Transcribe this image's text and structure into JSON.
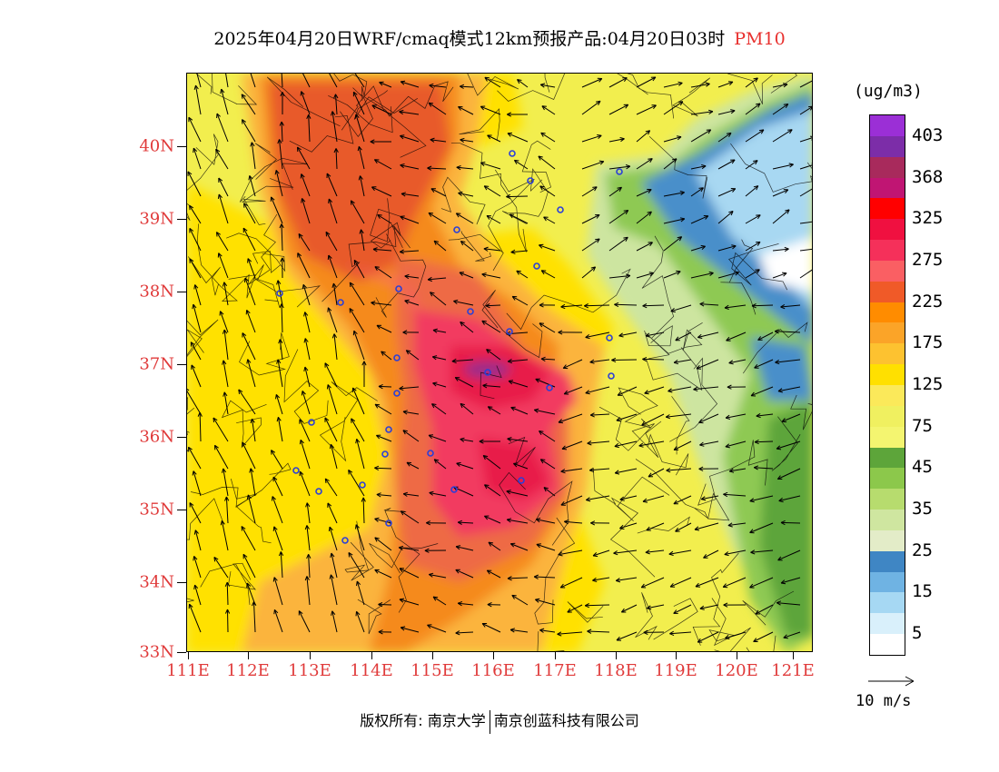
{
  "title": {
    "text": "2025年04月20日WRF/cmaq模式12km预报产品:04月20日03时",
    "variable": "PM10"
  },
  "map": {
    "lat_labels": [
      "40N",
      "39N",
      "38N",
      "37N",
      "36N",
      "35N",
      "34N",
      "33N"
    ],
    "lon_labels": [
      "111E",
      "112E",
      "113E",
      "114E",
      "115E",
      "116E",
      "117E",
      "118E",
      "119E",
      "120E",
      "121E"
    ],
    "colors": {
      "label": "#e03a3a"
    }
  },
  "legend": {
    "unit": "(ug/m3)",
    "levels": [
      {
        "label": "403",
        "color": "#9b2fd6"
      },
      {
        "label": "",
        "color": "#7c2da8"
      },
      {
        "label": "368",
        "color": "#a82a5c"
      },
      {
        "label": "",
        "color": "#c01573"
      },
      {
        "label": "325",
        "color": "#ff0000"
      },
      {
        "label": "",
        "color": "#f01040"
      },
      {
        "label": "275",
        "color": "#f5305a"
      },
      {
        "label": "",
        "color": "#fa5f63"
      },
      {
        "label": "225",
        "color": "#f05a28"
      },
      {
        "label": "",
        "color": "#ff8c00"
      },
      {
        "label": "175",
        "color": "#fba428"
      },
      {
        "label": "",
        "color": "#fdc230"
      },
      {
        "label": "125",
        "color": "#ffe000"
      },
      {
        "label": "",
        "color": "#fbe95a"
      },
      {
        "label": "75",
        "color": "#f0f060"
      },
      {
        "label": "",
        "color": "#f4f570"
      },
      {
        "label": "45",
        "color": "#5da53a"
      },
      {
        "label": "",
        "color": "#8cc84b"
      },
      {
        "label": "35",
        "color": "#b7dc6e"
      },
      {
        "label": "",
        "color": "#cfe6a0"
      },
      {
        "label": "25",
        "color": "#e3ecc8"
      },
      {
        "label": "",
        "color": "#3f86c4"
      },
      {
        "label": "15",
        "color": "#6fb3e3"
      },
      {
        "label": "",
        "color": "#a6d8f3"
      },
      {
        "label": "5",
        "color": "#d9f0fb"
      },
      {
        "label": "",
        "color": "#ffffff"
      }
    ]
  },
  "wind_reference": {
    "label": "10 m/s"
  },
  "footer": {
    "copyright": "版权所有: 南京大学",
    "company": "南京创蓝科技有限公司"
  }
}
